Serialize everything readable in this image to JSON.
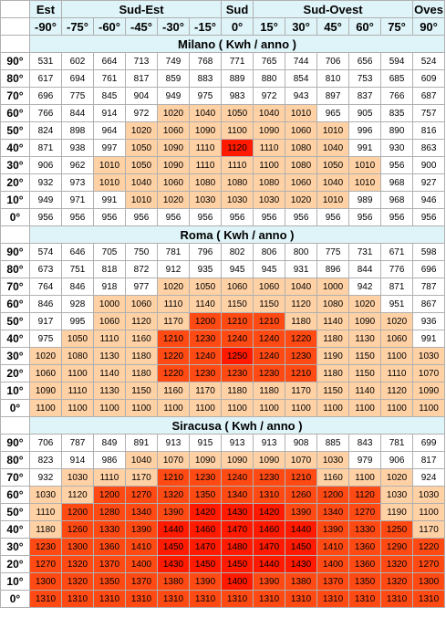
{
  "groups": [
    "Est",
    "Sud-Est",
    "Sud",
    "Sud-Ovest",
    "Oves"
  ],
  "azimuths": [
    "-90°",
    "-75°",
    "-60°",
    "-45°",
    "-30°",
    "-15°",
    "0°",
    "15°",
    "30°",
    "45°",
    "60°",
    "75°",
    "90°"
  ],
  "legend_colors": {
    "normal": "#ffffff",
    "high": "#ffd1a4",
    "very_high": "#ff4a14",
    "max": "#ff1a00"
  },
  "sections": [
    {
      "title": "Milano ( Kwh / anno )",
      "rows": [
        {
          "tilt": "90°",
          "values": [
            "531",
            "602",
            "664",
            "713",
            "749",
            "768",
            "771",
            "765",
            "744",
            "706",
            "656",
            "594",
            "524"
          ],
          "levels": [
            0,
            0,
            0,
            0,
            0,
            0,
            0,
            0,
            0,
            0,
            0,
            0,
            0
          ]
        },
        {
          "tilt": "80°",
          "values": [
            "617",
            "694",
            "761",
            "817",
            "859",
            "883",
            "889",
            "880",
            "854",
            "810",
            "753",
            "685",
            "609"
          ],
          "levels": [
            0,
            0,
            0,
            0,
            0,
            0,
            0,
            0,
            0,
            0,
            0,
            0,
            0
          ]
        },
        {
          "tilt": "70°",
          "values": [
            "696",
            "775",
            "845",
            "904",
            "949",
            "975",
            "983",
            "972",
            "943",
            "897",
            "837",
            "766",
            "687"
          ],
          "levels": [
            0,
            0,
            0,
            0,
            0,
            0,
            0,
            0,
            0,
            0,
            0,
            0,
            0
          ]
        },
        {
          "tilt": "60°",
          "values": [
            "766",
            "844",
            "914",
            "972",
            "1020",
            "1040",
            "1050",
            "1040",
            "1010",
            "965",
            "905",
            "835",
            "757"
          ],
          "levels": [
            0,
            0,
            0,
            0,
            1,
            1,
            1,
            1,
            1,
            0,
            0,
            0,
            0
          ]
        },
        {
          "tilt": "50°",
          "values": [
            "824",
            "898",
            "964",
            "1020",
            "1060",
            "1090",
            "1100",
            "1090",
            "1060",
            "1010",
            "996",
            "890",
            "816"
          ],
          "levels": [
            0,
            0,
            0,
            1,
            1,
            1,
            1,
            1,
            1,
            1,
            0,
            0,
            0
          ]
        },
        {
          "tilt": "40°",
          "values": [
            "871",
            "938",
            "997",
            "1050",
            "1090",
            "1110",
            "1120",
            "1110",
            "1080",
            "1040",
            "991",
            "930",
            "863"
          ],
          "levels": [
            0,
            0,
            0,
            1,
            1,
            1,
            3,
            1,
            1,
            1,
            0,
            0,
            0
          ]
        },
        {
          "tilt": "30°",
          "values": [
            "906",
            "962",
            "1010",
            "1050",
            "1090",
            "1110",
            "1110",
            "1100",
            "1080",
            "1050",
            "1010",
            "956",
            "900"
          ],
          "levels": [
            0,
            0,
            1,
            1,
            1,
            1,
            1,
            1,
            1,
            1,
            1,
            0,
            0
          ]
        },
        {
          "tilt": "20°",
          "values": [
            "932",
            "973",
            "1010",
            "1040",
            "1060",
            "1080",
            "1080",
            "1080",
            "1060",
            "1040",
            "1010",
            "968",
            "927"
          ],
          "levels": [
            0,
            0,
            1,
            1,
            1,
            1,
            1,
            1,
            1,
            1,
            1,
            0,
            0
          ]
        },
        {
          "tilt": "10°",
          "values": [
            "949",
            "971",
            "991",
            "1010",
            "1020",
            "1030",
            "1030",
            "1030",
            "1020",
            "1010",
            "989",
            "968",
            "946"
          ],
          "levels": [
            0,
            0,
            0,
            1,
            1,
            1,
            1,
            1,
            1,
            1,
            0,
            0,
            0
          ]
        },
        {
          "tilt": "0°",
          "values": [
            "956",
            "956",
            "956",
            "956",
            "956",
            "956",
            "956",
            "956",
            "956",
            "956",
            "956",
            "956",
            "956"
          ],
          "levels": [
            0,
            0,
            0,
            0,
            0,
            0,
            0,
            0,
            0,
            0,
            0,
            0,
            0
          ]
        }
      ]
    },
    {
      "title": "Roma ( Kwh / anno )",
      "rows": [
        {
          "tilt": "90°",
          "values": [
            "574",
            "646",
            "705",
            "750",
            "781",
            "796",
            "802",
            "806",
            "800",
            "775",
            "731",
            "671",
            "598"
          ],
          "levels": [
            0,
            0,
            0,
            0,
            0,
            0,
            0,
            0,
            0,
            0,
            0,
            0,
            0
          ]
        },
        {
          "tilt": "80°",
          "values": [
            "673",
            "751",
            "818",
            "872",
            "912",
            "935",
            "945",
            "945",
            "931",
            "896",
            "844",
            "776",
            "696"
          ],
          "levels": [
            0,
            0,
            0,
            0,
            0,
            0,
            0,
            0,
            0,
            0,
            0,
            0,
            0
          ]
        },
        {
          "tilt": "70°",
          "values": [
            "764",
            "846",
            "918",
            "977",
            "1020",
            "1050",
            "1060",
            "1060",
            "1040",
            "1000",
            "942",
            "871",
            "787"
          ],
          "levels": [
            0,
            0,
            0,
            0,
            1,
            1,
            1,
            1,
            1,
            1,
            0,
            0,
            0
          ]
        },
        {
          "tilt": "60°",
          "values": [
            "846",
            "928",
            "1000",
            "1060",
            "1110",
            "1140",
            "1150",
            "1150",
            "1120",
            "1080",
            "1020",
            "951",
            "867"
          ],
          "levels": [
            0,
            0,
            1,
            1,
            1,
            1,
            1,
            1,
            1,
            1,
            1,
            0,
            0
          ]
        },
        {
          "tilt": "50°",
          "values": [
            "917",
            "995",
            "1060",
            "1120",
            "1170",
            "1200",
            "1210",
            "1210",
            "1180",
            "1140",
            "1090",
            "1020",
            "936"
          ],
          "levels": [
            0,
            0,
            1,
            1,
            1,
            2,
            2,
            2,
            1,
            1,
            1,
            1,
            0
          ]
        },
        {
          "tilt": "40°",
          "values": [
            "975",
            "1050",
            "1110",
            "1160",
            "1210",
            "1230",
            "1240",
            "1240",
            "1220",
            "1180",
            "1130",
            "1060",
            "991"
          ],
          "levels": [
            0,
            1,
            1,
            1,
            2,
            2,
            2,
            2,
            2,
            1,
            1,
            1,
            0
          ]
        },
        {
          "tilt": "30°",
          "values": [
            "1020",
            "1080",
            "1130",
            "1180",
            "1220",
            "1240",
            "1250",
            "1240",
            "1230",
            "1190",
            "1150",
            "1100",
            "1030"
          ],
          "levels": [
            1,
            1,
            1,
            1,
            2,
            2,
            3,
            2,
            2,
            1,
            1,
            1,
            1
          ]
        },
        {
          "tilt": "20°",
          "values": [
            "1060",
            "1100",
            "1140",
            "1180",
            "1220",
            "1230",
            "1230",
            "1230",
            "1210",
            "1180",
            "1150",
            "1110",
            "1070"
          ],
          "levels": [
            1,
            1,
            1,
            1,
            2,
            2,
            2,
            2,
            2,
            1,
            1,
            1,
            1
          ]
        },
        {
          "tilt": "10°",
          "values": [
            "1090",
            "1110",
            "1130",
            "1150",
            "1160",
            "1170",
            "1180",
            "1180",
            "1170",
            "1150",
            "1140",
            "1120",
            "1090"
          ],
          "levels": [
            1,
            1,
            1,
            1,
            1,
            1,
            1,
            1,
            1,
            1,
            1,
            1,
            1
          ]
        },
        {
          "tilt": "0°",
          "values": [
            "1100",
            "1100",
            "1100",
            "1100",
            "1100",
            "1100",
            "1100",
            "1100",
            "1100",
            "1100",
            "1100",
            "1100",
            "1100"
          ],
          "levels": [
            1,
            1,
            1,
            1,
            1,
            1,
            1,
            1,
            1,
            1,
            1,
            1,
            1
          ]
        }
      ]
    },
    {
      "title": "Siracusa ( Kwh / anno )",
      "rows": [
        {
          "tilt": "90°",
          "values": [
            "706",
            "787",
            "849",
            "891",
            "913",
            "915",
            "913",
            "913",
            "908",
            "885",
            "843",
            "781",
            "699"
          ],
          "levels": [
            0,
            0,
            0,
            0,
            0,
            0,
            0,
            0,
            0,
            0,
            0,
            0,
            0
          ]
        },
        {
          "tilt": "80°",
          "values": [
            "823",
            "914",
            "986",
            "1040",
            "1070",
            "1090",
            "1090",
            "1090",
            "1070",
            "1030",
            "979",
            "906",
            "817"
          ],
          "levels": [
            0,
            0,
            0,
            1,
            1,
            1,
            1,
            1,
            1,
            1,
            0,
            0,
            0
          ]
        },
        {
          "tilt": "70°",
          "values": [
            "932",
            "1030",
            "1110",
            "1170",
            "1210",
            "1230",
            "1240",
            "1230",
            "1210",
            "1160",
            "1100",
            "1020",
            "924"
          ],
          "levels": [
            0,
            1,
            1,
            1,
            2,
            2,
            2,
            2,
            2,
            1,
            1,
            1,
            0
          ]
        },
        {
          "tilt": "60°",
          "values": [
            "1030",
            "1120",
            "1200",
            "1270",
            "1320",
            "1350",
            "1340",
            "1310",
            "1260",
            "1200",
            "1120",
            "1030",
            "1030"
          ],
          "levels": [
            1,
            1,
            2,
            2,
            2,
            2,
            2,
            2,
            2,
            2,
            2,
            1,
            1
          ]
        },
        {
          "tilt": "50°",
          "values": [
            "1110",
            "1200",
            "1280",
            "1340",
            "1390",
            "1420",
            "1430",
            "1420",
            "1390",
            "1340",
            "1270",
            "1190",
            "1100"
          ],
          "levels": [
            1,
            2,
            2,
            2,
            2,
            3,
            3,
            3,
            2,
            2,
            2,
            1,
            1
          ]
        },
        {
          "tilt": "40°",
          "values": [
            "1180",
            "1260",
            "1330",
            "1390",
            "1440",
            "1460",
            "1470",
            "1460",
            "1440",
            "1390",
            "1330",
            "1250",
            "1170"
          ],
          "levels": [
            1,
            2,
            2,
            2,
            3,
            3,
            3,
            3,
            3,
            2,
            2,
            2,
            1
          ]
        },
        {
          "tilt": "30°",
          "values": [
            "1230",
            "1300",
            "1360",
            "1410",
            "1450",
            "1470",
            "1480",
            "1470",
            "1450",
            "1410",
            "1360",
            "1290",
            "1220"
          ],
          "levels": [
            2,
            2,
            2,
            2,
            3,
            3,
            3,
            3,
            3,
            2,
            2,
            2,
            2
          ]
        },
        {
          "tilt": "20°",
          "values": [
            "1270",
            "1320",
            "1370",
            "1400",
            "1430",
            "1450",
            "1450",
            "1440",
            "1430",
            "1400",
            "1360",
            "1320",
            "1270"
          ],
          "levels": [
            2,
            2,
            2,
            2,
            3,
            3,
            3,
            3,
            3,
            2,
            2,
            2,
            2
          ]
        },
        {
          "tilt": "10°",
          "values": [
            "1300",
            "1320",
            "1350",
            "1370",
            "1380",
            "1390",
            "1400",
            "1390",
            "1380",
            "1370",
            "1350",
            "1320",
            "1300"
          ],
          "levels": [
            2,
            2,
            2,
            2,
            2,
            2,
            3,
            2,
            2,
            2,
            2,
            2,
            2
          ]
        },
        {
          "tilt": "0°",
          "values": [
            "1310",
            "1310",
            "1310",
            "1310",
            "1310",
            "1310",
            "1310",
            "1310",
            "1310",
            "1310",
            "1310",
            "1310",
            "1310"
          ],
          "levels": [
            2,
            2,
            2,
            2,
            2,
            2,
            2,
            2,
            2,
            2,
            2,
            2,
            2
          ]
        }
      ]
    }
  ]
}
